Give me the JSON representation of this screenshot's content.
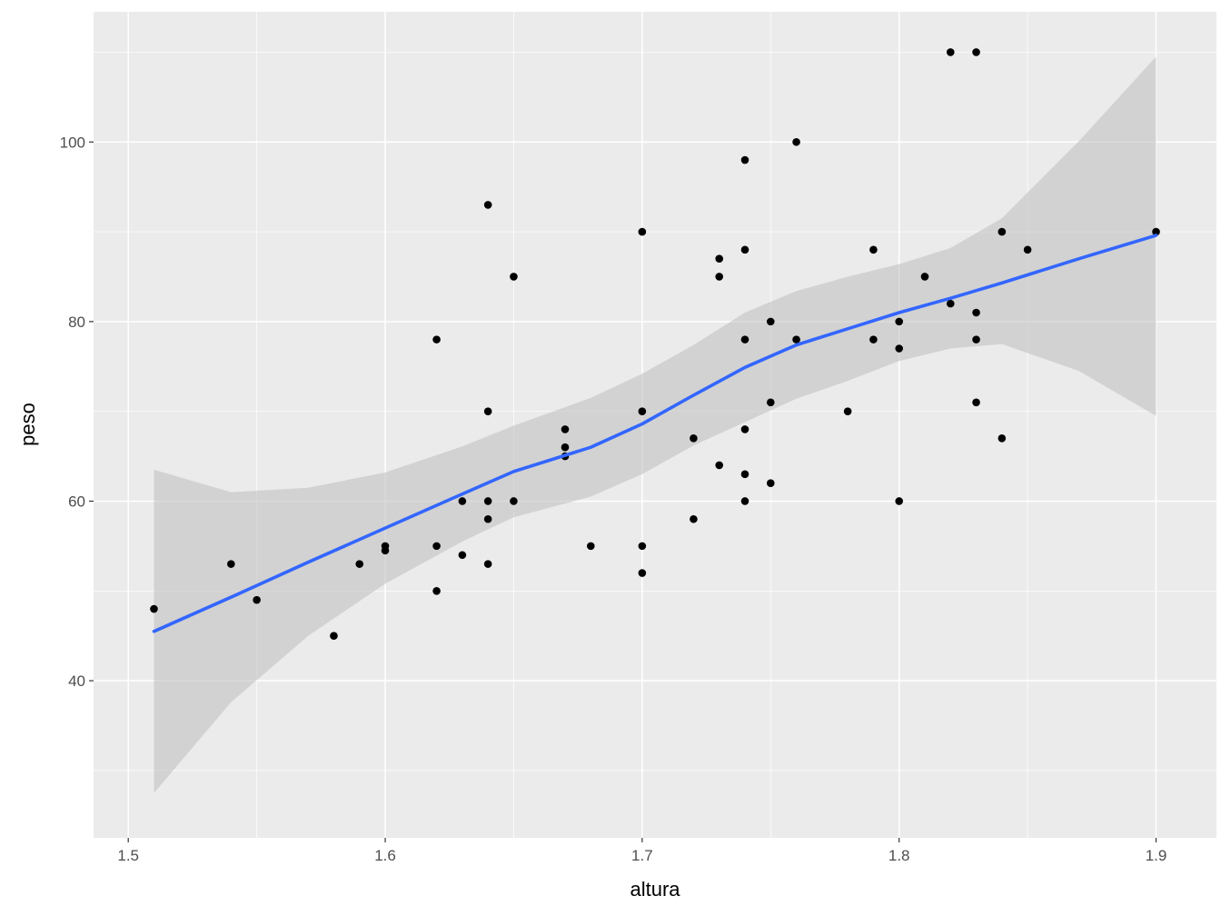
{
  "chart_data": {
    "type": "scatter",
    "title": "",
    "xlabel": "altura",
    "ylabel": "peso",
    "xlim": [
      1.4865,
      1.9235
    ],
    "ylim": [
      22.5,
      114.5
    ],
    "x_ticks": [
      1.5,
      1.6,
      1.7,
      1.8,
      1.9
    ],
    "x_tick_labels": [
      "1.5",
      "1.6",
      "1.7",
      "1.8",
      "1.9"
    ],
    "y_ticks": [
      40,
      60,
      80,
      100
    ],
    "y_tick_labels": [
      "40",
      "60",
      "80",
      "100"
    ],
    "grid": true,
    "colors": {
      "panel_background": "#ebebeb",
      "grid_major": "#ffffff",
      "points": "#000000",
      "smooth_line": "#3366ff",
      "confidence_band": "#bdbdbd"
    },
    "points": [
      {
        "x": 1.51,
        "y": 48
      },
      {
        "x": 1.54,
        "y": 53
      },
      {
        "x": 1.55,
        "y": 49
      },
      {
        "x": 1.58,
        "y": 45
      },
      {
        "x": 1.59,
        "y": 53
      },
      {
        "x": 1.6,
        "y": 55
      },
      {
        "x": 1.6,
        "y": 54.5
      },
      {
        "x": 1.62,
        "y": 78
      },
      {
        "x": 1.62,
        "y": 55
      },
      {
        "x": 1.62,
        "y": 50
      },
      {
        "x": 1.63,
        "y": 60
      },
      {
        "x": 1.63,
        "y": 54
      },
      {
        "x": 1.64,
        "y": 93
      },
      {
        "x": 1.64,
        "y": 70
      },
      {
        "x": 1.64,
        "y": 60
      },
      {
        "x": 1.64,
        "y": 58
      },
      {
        "x": 1.64,
        "y": 53
      },
      {
        "x": 1.65,
        "y": 85
      },
      {
        "x": 1.65,
        "y": 60
      },
      {
        "x": 1.67,
        "y": 68
      },
      {
        "x": 1.67,
        "y": 66
      },
      {
        "x": 1.67,
        "y": 65
      },
      {
        "x": 1.68,
        "y": 55
      },
      {
        "x": 1.7,
        "y": 90
      },
      {
        "x": 1.7,
        "y": 70
      },
      {
        "x": 1.7,
        "y": 55
      },
      {
        "x": 1.7,
        "y": 52
      },
      {
        "x": 1.72,
        "y": 67
      },
      {
        "x": 1.72,
        "y": 58
      },
      {
        "x": 1.73,
        "y": 87
      },
      {
        "x": 1.73,
        "y": 85
      },
      {
        "x": 1.73,
        "y": 64
      },
      {
        "x": 1.74,
        "y": 98
      },
      {
        "x": 1.74,
        "y": 88
      },
      {
        "x": 1.74,
        "y": 78
      },
      {
        "x": 1.74,
        "y": 68
      },
      {
        "x": 1.74,
        "y": 63
      },
      {
        "x": 1.74,
        "y": 60
      },
      {
        "x": 1.75,
        "y": 80
      },
      {
        "x": 1.75,
        "y": 71
      },
      {
        "x": 1.75,
        "y": 62
      },
      {
        "x": 1.76,
        "y": 100
      },
      {
        "x": 1.76,
        "y": 78
      },
      {
        "x": 1.78,
        "y": 70
      },
      {
        "x": 1.79,
        "y": 88
      },
      {
        "x": 1.79,
        "y": 78
      },
      {
        "x": 1.8,
        "y": 80
      },
      {
        "x": 1.8,
        "y": 77
      },
      {
        "x": 1.8,
        "y": 60
      },
      {
        "x": 1.81,
        "y": 85
      },
      {
        "x": 1.82,
        "y": 110
      },
      {
        "x": 1.82,
        "y": 82
      },
      {
        "x": 1.83,
        "y": 110
      },
      {
        "x": 1.83,
        "y": 81
      },
      {
        "x": 1.83,
        "y": 78
      },
      {
        "x": 1.83,
        "y": 71
      },
      {
        "x": 1.84,
        "y": 90
      },
      {
        "x": 1.84,
        "y": 67
      },
      {
        "x": 1.85,
        "y": 88
      },
      {
        "x": 1.9,
        "y": 90
      }
    ],
    "smooth_line": [
      {
        "x": 1.51,
        "y": 45.5
      },
      {
        "x": 1.54,
        "y": 49.3
      },
      {
        "x": 1.57,
        "y": 53.2
      },
      {
        "x": 1.6,
        "y": 57
      },
      {
        "x": 1.63,
        "y": 60.8
      },
      {
        "x": 1.65,
        "y": 63.3
      },
      {
        "x": 1.68,
        "y": 66
      },
      {
        "x": 1.7,
        "y": 68.6
      },
      {
        "x": 1.72,
        "y": 71.8
      },
      {
        "x": 1.74,
        "y": 74.9
      },
      {
        "x": 1.76,
        "y": 77.4
      },
      {
        "x": 1.78,
        "y": 79.2
      },
      {
        "x": 1.8,
        "y": 81
      },
      {
        "x": 1.82,
        "y": 82.6
      },
      {
        "x": 1.84,
        "y": 84.3
      },
      {
        "x": 1.87,
        "y": 87
      },
      {
        "x": 1.9,
        "y": 89.6
      }
    ],
    "confidence_upper": [
      {
        "x": 1.51,
        "y": 63.5
      },
      {
        "x": 1.54,
        "y": 61
      },
      {
        "x": 1.57,
        "y": 61.5
      },
      {
        "x": 1.6,
        "y": 63.2
      },
      {
        "x": 1.63,
        "y": 66.1
      },
      {
        "x": 1.65,
        "y": 68.4
      },
      {
        "x": 1.68,
        "y": 71.5
      },
      {
        "x": 1.7,
        "y": 74.2
      },
      {
        "x": 1.72,
        "y": 77.4
      },
      {
        "x": 1.74,
        "y": 81
      },
      {
        "x": 1.76,
        "y": 83.4
      },
      {
        "x": 1.78,
        "y": 85
      },
      {
        "x": 1.8,
        "y": 86.4
      },
      {
        "x": 1.82,
        "y": 88.2
      },
      {
        "x": 1.84,
        "y": 91.5
      },
      {
        "x": 1.87,
        "y": 100.1
      },
      {
        "x": 1.9,
        "y": 109.5
      }
    ],
    "confidence_lower": [
      {
        "x": 1.51,
        "y": 27.5
      },
      {
        "x": 1.54,
        "y": 37.6
      },
      {
        "x": 1.57,
        "y": 45
      },
      {
        "x": 1.6,
        "y": 50.8
      },
      {
        "x": 1.63,
        "y": 55.5
      },
      {
        "x": 1.65,
        "y": 58.2
      },
      {
        "x": 1.68,
        "y": 60.5
      },
      {
        "x": 1.7,
        "y": 63
      },
      {
        "x": 1.72,
        "y": 66.2
      },
      {
        "x": 1.74,
        "y": 68.8
      },
      {
        "x": 1.76,
        "y": 71.4
      },
      {
        "x": 1.78,
        "y": 73.4
      },
      {
        "x": 1.8,
        "y": 75.6
      },
      {
        "x": 1.82,
        "y": 77
      },
      {
        "x": 1.84,
        "y": 77.5
      },
      {
        "x": 1.87,
        "y": 74.5
      },
      {
        "x": 1.9,
        "y": 69.5
      }
    ]
  }
}
